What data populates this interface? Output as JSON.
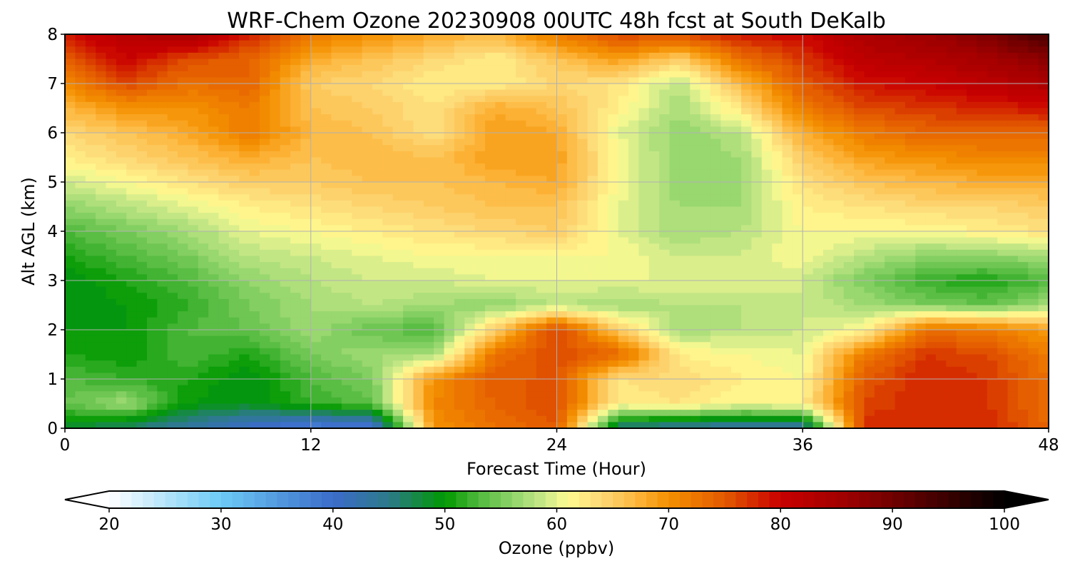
{
  "chart_data": {
    "type": "heatmap",
    "title": "WRF-Chem Ozone  20230908 00UTC 48h fcst at South DeKalb",
    "xlabel": "Forecast Time (Hour)",
    "ylabel": "Alt AGL (km)",
    "xlim": [
      0,
      48
    ],
    "ylim": [
      0,
      8
    ],
    "x_ticks": [
      "0",
      "12",
      "24",
      "36",
      "48"
    ],
    "y_ticks": [
      "0",
      "1",
      "2",
      "3",
      "4",
      "5",
      "6",
      "7",
      "8"
    ],
    "grid": true,
    "x": [
      0,
      3,
      6,
      9,
      12,
      15,
      18,
      21,
      24,
      27,
      30,
      33,
      36,
      39,
      42,
      45,
      48
    ],
    "y": [
      0,
      0.5,
      1,
      1.5,
      2,
      2.5,
      3,
      3.5,
      4,
      4.5,
      5,
      5.5,
      6,
      6.5,
      7,
      7.5,
      8
    ],
    "z": [
      [
        48,
        46,
        43,
        40,
        37,
        38,
        70,
        73,
        75,
        45,
        43,
        42,
        42,
        78,
        78,
        78,
        74
      ],
      [
        54,
        57,
        50,
        49,
        52,
        54,
        71,
        74,
        76,
        62,
        63,
        61,
        62,
        76,
        78,
        77,
        73
      ],
      [
        53,
        52,
        51,
        49,
        53,
        55,
        70,
        75,
        75,
        63,
        64,
        62,
        61,
        75,
        78,
        77,
        73
      ],
      [
        51,
        50,
        53,
        51,
        55,
        57,
        57,
        73,
        76,
        74,
        62,
        61,
        60,
        72,
        77,
        76,
        72
      ],
      [
        50,
        50,
        53,
        54,
        57,
        54,
        53,
        65,
        77,
        65,
        57,
        58,
        59,
        61,
        73,
        72,
        69
      ],
      [
        49,
        50,
        52,
        55,
        57,
        58,
        57,
        56,
        58,
        57,
        58,
        58,
        59,
        57,
        55,
        54,
        57
      ],
      [
        49,
        51,
        53,
        56,
        58,
        59,
        59,
        60,
        60,
        60,
        60,
        60,
        59,
        55,
        52,
        51,
        53
      ],
      [
        51,
        53,
        55,
        58,
        59,
        60,
        61,
        61,
        61,
        61,
        59,
        59,
        61,
        58,
        56,
        56,
        57
      ],
      [
        53,
        55,
        57,
        60,
        61,
        62,
        63,
        64,
        65,
        60,
        57,
        58,
        61,
        61,
        61,
        62,
        63
      ],
      [
        56,
        58,
        60,
        62,
        63,
        64,
        65,
        66,
        66,
        60,
        57,
        57,
        62,
        63,
        64,
        64,
        65
      ],
      [
        59,
        61,
        63,
        65,
        65,
        66,
        66,
        67,
        68,
        61,
        56,
        57,
        63,
        66,
        67,
        68,
        68
      ],
      [
        62,
        64,
        66,
        68,
        66,
        67,
        66,
        69,
        69,
        61,
        56,
        57,
        65,
        69,
        70,
        71,
        71
      ],
      [
        64,
        66,
        68,
        72,
        67,
        66,
        63,
        69,
        68,
        60,
        56,
        58,
        68,
        72,
        74,
        74,
        74
      ],
      [
        67,
        70,
        70,
        72,
        66,
        65,
        63,
        68,
        66,
        62,
        57,
        63,
        72,
        76,
        77,
        78,
        79
      ],
      [
        71,
        76,
        73,
        74,
        65,
        64,
        62,
        62,
        64,
        63,
        58,
        67,
        75,
        79,
        80,
        82,
        84
      ],
      [
        75,
        80,
        76,
        74,
        68,
        66,
        64,
        62,
        66,
        69,
        65,
        73,
        77,
        82,
        83,
        85,
        88
      ],
      [
        79,
        83,
        85,
        78,
        72,
        70,
        68,
        67,
        72,
        76,
        76,
        79,
        80,
        84,
        86,
        89,
        94
      ]
    ],
    "colorbar": {
      "label": "Ozone  (ppbv)",
      "min": 20,
      "max": 100,
      "ticks": [
        "20",
        "30",
        "40",
        "50",
        "60",
        "70",
        "80",
        "90",
        "100"
      ],
      "extend": "both",
      "levels": 80
    },
    "colormap": [
      [
        20,
        "#ffffff"
      ],
      [
        30,
        "#6ccaf6"
      ],
      [
        40,
        "#3b6cc9"
      ],
      [
        45,
        "#2c7a8a"
      ],
      [
        50,
        "#009900"
      ],
      [
        53,
        "#4fb83c"
      ],
      [
        56,
        "#8ed36a"
      ],
      [
        59,
        "#cdea8a"
      ],
      [
        61,
        "#fffb90"
      ],
      [
        64,
        "#fdd776"
      ],
      [
        67,
        "#fdb840"
      ],
      [
        70,
        "#f49000"
      ],
      [
        75,
        "#e35a00"
      ],
      [
        80,
        "#c90000"
      ],
      [
        86,
        "#9d0000"
      ],
      [
        92,
        "#5a0000"
      ],
      [
        100,
        "#000000"
      ]
    ]
  }
}
